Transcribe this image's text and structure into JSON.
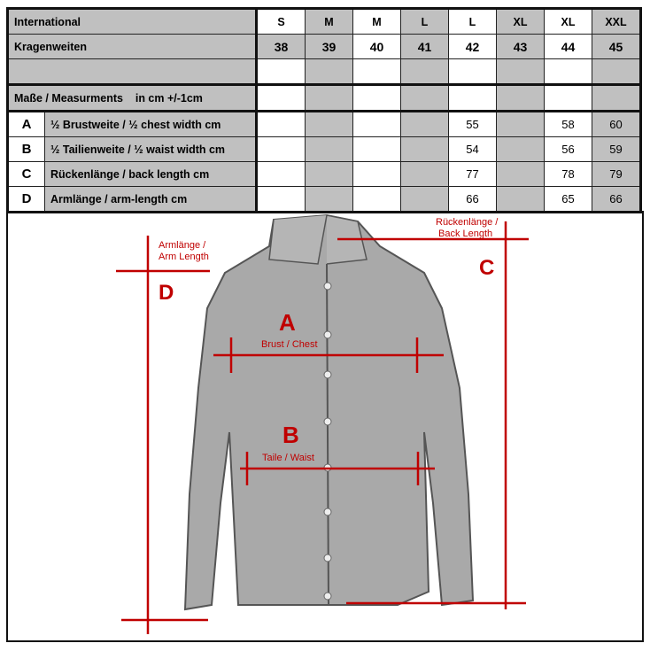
{
  "table": {
    "header_label": "International",
    "collar_label": "Kragenweiten",
    "measure_label": "Maße / Measurments    in cm +/-1cm",
    "sizes": [
      "S",
      "M",
      "M",
      "L",
      "L",
      "XL",
      "XL",
      "XXL"
    ],
    "collars": [
      "38",
      "39",
      "40",
      "41",
      "42",
      "43",
      "44",
      "45"
    ],
    "rows": [
      {
        "letter": "A",
        "label": "½ Brustweite / ½ chest width cm",
        "values": [
          "",
          "",
          "",
          "",
          "55",
          "",
          "58",
          "60"
        ]
      },
      {
        "letter": "B",
        "label": "½ Tailienweite / ½ waist width cm",
        "values": [
          "",
          "",
          "",
          "",
          "54",
          "",
          "56",
          "59"
        ]
      },
      {
        "letter": "C",
        "label": "Rückenlänge / back length cm",
        "values": [
          "",
          "",
          "",
          "",
          "77",
          "",
          "78",
          "79"
        ]
      },
      {
        "letter": "D",
        "label": "Armlänge / arm-length cm",
        "values": [
          "",
          "",
          "",
          "",
          "66",
          "",
          "65",
          "66"
        ]
      }
    ]
  },
  "figure": {
    "arm_label_1": "Armlänge /",
    "arm_label_2": "Arm Length",
    "back_label_1": "Rückenlänge /",
    "back_label_2": "Back Length",
    "A": "A",
    "A_sub": "Brust / Chest",
    "B": "B",
    "B_sub": "Taile / Waist",
    "C": "C",
    "D": "D",
    "accent": "#c00000"
  }
}
